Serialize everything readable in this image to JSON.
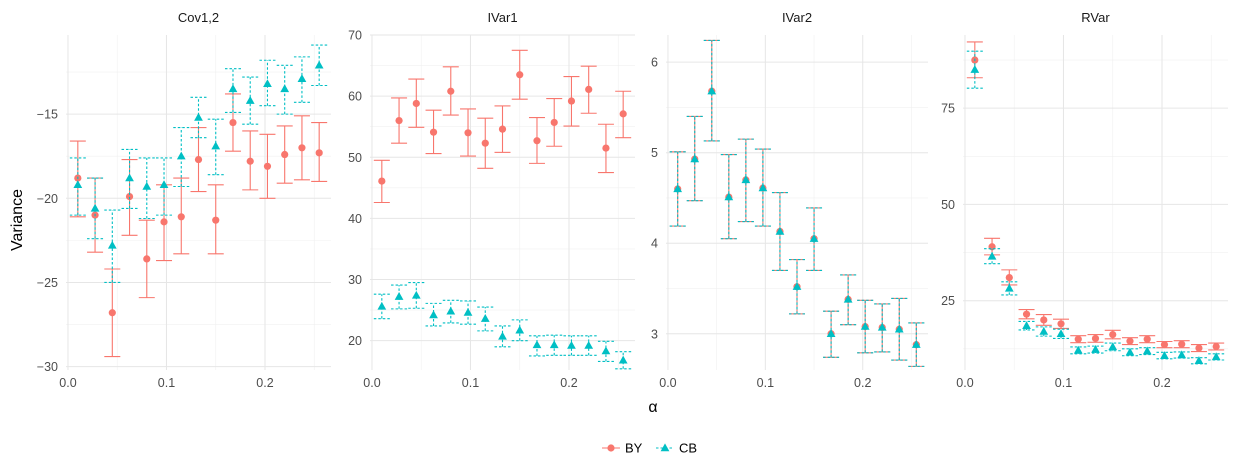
{
  "chart_data": {
    "type": "scatter",
    "ylabel": "Variance",
    "xlabel": "α",
    "colors": {
      "BY": "#F8766D",
      "CB": "#00BFC4"
    },
    "legend": {
      "position": "bottom",
      "items": [
        "BY",
        "CB"
      ]
    },
    "x": [
      0.01,
      0.0275,
      0.045,
      0.0625,
      0.08,
      0.0975,
      0.115,
      0.1325,
      0.15,
      0.1675,
      0.185,
      0.2025,
      0.22,
      0.2375,
      0.255
    ],
    "x_ticks": [
      "0.0",
      "0.1",
      "0.2"
    ],
    "xlim": [
      -0.002,
      0.267
    ],
    "panels": [
      {
        "title": "Cov1,2",
        "ylim": [
          -30.2,
          -10.3
        ],
        "y_ticks": [
          -30,
          -25,
          -20,
          -15
        ],
        "series": [
          {
            "name": "BY",
            "y": [
              -18.8,
              -21.0,
              -26.8,
              -19.9,
              -23.6,
              -21.4,
              -21.1,
              -17.7,
              -21.3,
              -15.5,
              -17.8,
              -18.1,
              -17.4,
              -17.0,
              -17.3
            ],
            "low": [
              -21.1,
              -23.2,
              -29.4,
              -22.2,
              -25.9,
              -23.7,
              -23.3,
              -19.6,
              -23.3,
              -17.2,
              -19.5,
              -20.0,
              -19.1,
              -18.9,
              -19.0
            ],
            "high": [
              -16.6,
              -18.8,
              -24.2,
              -17.7,
              -21.3,
              -19.2,
              -18.8,
              -15.8,
              -19.2,
              -13.8,
              -16.0,
              -16.2,
              -15.7,
              -15.1,
              -15.5
            ]
          },
          {
            "name": "CB",
            "y": [
              -19.2,
              -20.6,
              -22.8,
              -18.8,
              -19.3,
              -19.2,
              -17.5,
              -15.2,
              -16.9,
              -13.5,
              -14.2,
              -13.2,
              -13.5,
              -12.9,
              -12.1
            ],
            "low": [
              -21.0,
              -22.4,
              -25.0,
              -20.6,
              -21.2,
              -21.0,
              -19.3,
              -16.4,
              -18.6,
              -14.9,
              -15.6,
              -14.5,
              -15.0,
              -14.3,
              -13.3
            ],
            "high": [
              -17.6,
              -18.8,
              -20.7,
              -17.1,
              -17.6,
              -17.6,
              -15.8,
              -14.0,
              -15.3,
              -12.3,
              -12.8,
              -11.8,
              -12.1,
              -11.6,
              -10.9
            ]
          }
        ]
      },
      {
        "title": "IVar1",
        "ylim": [
          15.2,
          70.0
        ],
        "y_ticks": [
          20,
          30,
          40,
          50,
          60,
          70
        ],
        "series": [
          {
            "name": "BY",
            "y": [
              46.1,
              56.0,
              58.8,
              54.1,
              60.8,
              54.0,
              52.3,
              54.6,
              63.5,
              52.7,
              55.7,
              59.2,
              61.1,
              51.5,
              57.1
            ],
            "low": [
              42.6,
              52.3,
              54.9,
              50.6,
              56.9,
              50.2,
              48.2,
              50.8,
              59.5,
              49.0,
              51.8,
              55.1,
              57.2,
              47.5,
              53.2
            ],
            "high": [
              49.5,
              59.7,
              62.8,
              57.7,
              64.8,
              57.9,
              56.4,
              58.4,
              67.5,
              56.5,
              59.6,
              63.2,
              64.9,
              55.4,
              60.8
            ]
          },
          {
            "name": "CB",
            "y": [
              25.6,
              27.2,
              27.4,
              24.2,
              24.8,
              24.6,
              23.6,
              20.7,
              21.7,
              19.3,
              19.3,
              19.2,
              19.2,
              18.3,
              16.8
            ],
            "low": [
              23.6,
              25.2,
              25.3,
              22.4,
              22.9,
              22.7,
              21.6,
              19.0,
              20.0,
              17.5,
              17.6,
              17.6,
              17.6,
              16.6,
              15.4
            ],
            "high": [
              27.6,
              29.1,
              29.5,
              26.1,
              26.6,
              26.5,
              25.5,
              22.4,
              23.4,
              20.8,
              20.9,
              20.8,
              20.8,
              19.9,
              18.2
            ]
          }
        ]
      },
      {
        "title": "IVar2",
        "ylim": [
          2.6,
          6.3
        ],
        "y_ticks": [
          3,
          4,
          5,
          6
        ],
        "series": [
          {
            "name": "BY",
            "y": [
              4.6,
              4.93,
              5.68,
              4.51,
              4.7,
              4.61,
              4.13,
              3.52,
              4.05,
              3.0,
              3.38,
              3.08,
              3.07,
              3.05,
              2.88
            ],
            "low": [
              4.19,
              4.47,
              5.13,
              4.05,
              4.24,
              4.19,
              3.7,
              3.22,
              3.7,
              2.74,
              3.1,
              2.79,
              2.8,
              2.71,
              2.64
            ],
            "high": [
              5.01,
              5.4,
              6.24,
              4.98,
              5.15,
              5.04,
              4.56,
              3.82,
              4.39,
              3.25,
              3.65,
              3.37,
              3.33,
              3.39,
              3.12
            ]
          },
          {
            "name": "CB",
            "y": [
              4.6,
              4.93,
              5.68,
              4.51,
              4.7,
              4.61,
              4.13,
              3.52,
              4.05,
              3.0,
              3.38,
              3.08,
              3.07,
              3.05,
              2.88
            ],
            "low": [
              4.19,
              4.47,
              5.13,
              4.05,
              4.24,
              4.19,
              3.7,
              3.22,
              3.7,
              2.74,
              3.1,
              2.79,
              2.8,
              2.71,
              2.64
            ],
            "high": [
              5.01,
              5.4,
              6.24,
              4.98,
              5.15,
              5.04,
              4.56,
              3.82,
              4.39,
              3.25,
              3.65,
              3.37,
              3.33,
              3.39,
              3.12
            ]
          }
        ]
      },
      {
        "title": "RVar",
        "ylim": [
          7.0,
          94.0
        ],
        "y_ticks": [
          25,
          50,
          75
        ],
        "series": [
          {
            "name": "BY",
            "y": [
              87.5,
              39.0,
              31.0,
              21.5,
              20.0,
              19.0,
              15.0,
              15.2,
              16.2,
              14.5,
              15.0,
              13.6,
              13.7,
              12.7,
              13.1
            ],
            "low": [
              82.9,
              36.9,
              29.1,
              20.3,
              18.6,
              17.8,
              14.1,
              14.2,
              15.1,
              13.6,
              14.1,
              12.8,
              12.8,
              11.8,
              12.2
            ],
            "high": [
              92.2,
              41.2,
              33.0,
              22.7,
              21.4,
              20.2,
              15.9,
              16.2,
              17.3,
              15.4,
              15.9,
              14.4,
              14.6,
              13.6,
              14.0
            ]
          },
          {
            "name": "CB",
            "y": [
              85.0,
              36.5,
              28.2,
              18.5,
              17.0,
              16.4,
              12.1,
              12.3,
              13.0,
              11.6,
              11.9,
              10.7,
              10.9,
              9.4,
              10.4
            ],
            "low": [
              80.2,
              34.6,
              26.5,
              17.4,
              15.8,
              15.2,
              11.2,
              11.4,
              12.0,
              10.7,
              11.0,
              9.9,
              10.1,
              8.6,
              9.6
            ],
            "high": [
              89.8,
              38.5,
              29.9,
              19.6,
              18.2,
              17.6,
              13.0,
              13.2,
              14.0,
              12.5,
              12.8,
              11.6,
              11.7,
              10.2,
              11.2
            ]
          }
        ]
      }
    ]
  }
}
